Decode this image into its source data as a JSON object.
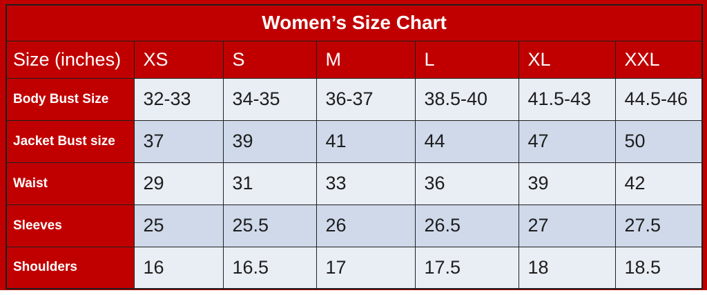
{
  "title": "Women’s Size Chart",
  "colors": {
    "accent_red": "#c00000",
    "row_light": "#e9edf4",
    "row_alt": "#cfd9ea",
    "grid_border": "#1f1f1f",
    "data_text": "#1d1d1d",
    "header_text": "#ffffff"
  },
  "chart_data": {
    "type": "table",
    "title": "Women’s Size Chart",
    "columns": [
      "Size (inches)",
      "XS",
      "S",
      "M",
      "L",
      "XL",
      "XXL"
    ],
    "rows": [
      {
        "label": "Body Bust Size",
        "values": [
          "32-33",
          "34-35",
          "36-37",
          "38.5-40",
          "41.5-43",
          "44.5-46"
        ]
      },
      {
        "label": "Jacket Bust size",
        "values": [
          "37",
          "39",
          "41",
          "44",
          "47",
          "50"
        ]
      },
      {
        "label": "Waist",
        "values": [
          "29",
          "31",
          "33",
          "36",
          "39",
          "42"
        ]
      },
      {
        "label": "Sleeves",
        "values": [
          "25",
          "25.5",
          "26",
          "26.5",
          "27",
          "27.5"
        ]
      },
      {
        "label": "Shoulders",
        "values": [
          "16",
          "16.5",
          "17",
          "17.5",
          "18",
          "18.5"
        ]
      }
    ]
  }
}
